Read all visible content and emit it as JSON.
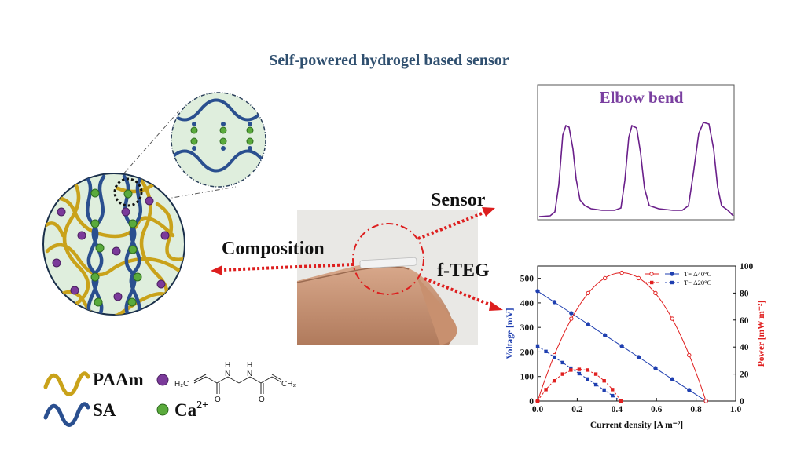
{
  "title": "Self-powered hydrogel based sensor",
  "labels": {
    "sensor": "Sensor",
    "composition": "Composition",
    "fteg": "f-TEG"
  },
  "elbow_panel": {
    "label": "Elbow bend",
    "line_color": "#6a1f8a"
  },
  "legend": {
    "paam": "PAAm",
    "sa": "SA",
    "ca_base": "Ca",
    "ca_sup": "2+",
    "paam_color": "#c9a21a",
    "sa_color": "#2a4f8f",
    "crosslinker_color": "#7b3a9a",
    "ca_color": "#5aaa3c"
  },
  "chemical": {
    "h2c_left": "H₂C",
    "nh_left": "H",
    "n_left": "N",
    "nh_right": "H",
    "n_right": "N",
    "o_left": "O",
    "o_right": "O",
    "ch2_right": "CH₂"
  },
  "chart_data": {
    "type": "line",
    "xlabel": "Current density [A m⁻²]",
    "ylabel_left": "Voltage [mV]",
    "ylabel_right": "Power [mW m⁻²]",
    "xlim": [
      0.0,
      1.0
    ],
    "ylim_left": [
      0,
      550
    ],
    "ylim_right": [
      0,
      100
    ],
    "x_ticks": [
      "0.0",
      "0.2",
      "0.4",
      "0.6",
      "0.8",
      "1.0"
    ],
    "y_ticks_left": [
      "0",
      "100",
      "200",
      "300",
      "400",
      "500"
    ],
    "y_ticks_right": [
      "0",
      "20",
      "40",
      "60",
      "80",
      "100"
    ],
    "legend_position": "top-right",
    "series": [
      {
        "name": "T= Δ40°C",
        "axis": "left",
        "color": "#1f3fb0",
        "marker": "circle",
        "dash": false,
        "x": [
          0.0,
          0.085,
          0.17,
          0.255,
          0.34,
          0.425,
          0.51,
          0.595,
          0.68,
          0.765,
          0.85
        ],
        "values": [
          448,
          403,
          358,
          313,
          268,
          224,
          179,
          134,
          89,
          45,
          0
        ]
      },
      {
        "name": "T= Δ40°C",
        "axis": "right",
        "color": "#e02020",
        "marker": "circle",
        "dash": false,
        "x": [
          0.0,
          0.085,
          0.17,
          0.255,
          0.34,
          0.425,
          0.51,
          0.595,
          0.68,
          0.765,
          0.85
        ],
        "values": [
          0,
          34,
          61,
          80,
          91,
          95,
          91,
          80,
          61,
          34,
          0
        ]
      },
      {
        "name": "T= Δ20°C",
        "axis": "left",
        "color": "#1f3fb0",
        "marker": "square",
        "dash": true,
        "x": [
          0.0,
          0.042,
          0.084,
          0.126,
          0.168,
          0.21,
          0.252,
          0.294,
          0.336,
          0.378,
          0.42
        ],
        "values": [
          224,
          202,
          179,
          157,
          134,
          112,
          90,
          67,
          45,
          22,
          0
        ]
      },
      {
        "name": "T= Δ20°C",
        "axis": "right",
        "color": "#e02020",
        "marker": "square",
        "dash": true,
        "x": [
          0.0,
          0.042,
          0.084,
          0.126,
          0.168,
          0.21,
          0.252,
          0.294,
          0.336,
          0.378,
          0.42
        ],
        "values": [
          0,
          8.5,
          15,
          20,
          23,
          23.5,
          23,
          20,
          15,
          8.5,
          0
        ]
      }
    ]
  }
}
